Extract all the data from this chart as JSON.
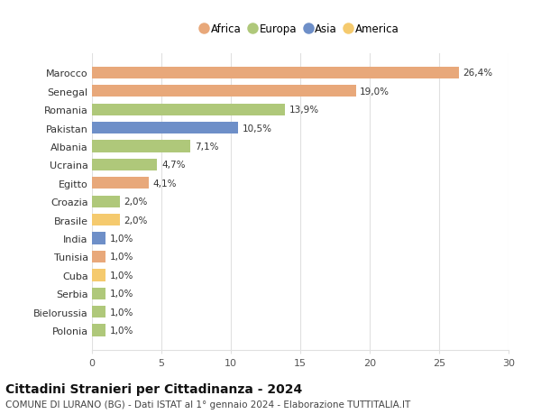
{
  "countries": [
    "Polonia",
    "Bielorussia",
    "Serbia",
    "Cuba",
    "Tunisia",
    "India",
    "Brasile",
    "Croazia",
    "Egitto",
    "Ucraina",
    "Albania",
    "Pakistan",
    "Romania",
    "Senegal",
    "Marocco"
  ],
  "values": [
    1.0,
    1.0,
    1.0,
    1.0,
    1.0,
    1.0,
    2.0,
    2.0,
    4.1,
    4.7,
    7.1,
    10.5,
    13.9,
    19.0,
    26.4
  ],
  "labels": [
    "1,0%",
    "1,0%",
    "1,0%",
    "1,0%",
    "1,0%",
    "1,0%",
    "2,0%",
    "2,0%",
    "4,1%",
    "4,7%",
    "7,1%",
    "10,5%",
    "13,9%",
    "19,0%",
    "26,4%"
  ],
  "colors": [
    "#afc87a",
    "#afc87a",
    "#afc87a",
    "#f5ca6e",
    "#e8a87a",
    "#6e8fc8",
    "#f5ca6e",
    "#afc87a",
    "#e8a87a",
    "#afc87a",
    "#afc87a",
    "#6e8fc8",
    "#afc87a",
    "#e8a87a",
    "#e8a87a"
  ],
  "legend_labels": [
    "Africa",
    "Europa",
    "Asia",
    "America"
  ],
  "legend_colors": [
    "#e8a87a",
    "#afc87a",
    "#6e8fc8",
    "#f5ca6e"
  ],
  "title": "Cittadini Stranieri per Cittadinanza - 2024",
  "subtitle": "COMUNE DI LURANO (BG) - Dati ISTAT al 1° gennaio 2024 - Elaborazione TUTTITALIA.IT",
  "xlim": [
    0,
    30
  ],
  "xticks": [
    0,
    5,
    10,
    15,
    20,
    25,
    30
  ],
  "background_color": "#ffffff",
  "grid_color": "#e0e0e0",
  "bar_height": 0.65,
  "title_fontsize": 10,
  "subtitle_fontsize": 7.5,
  "label_fontsize": 7.5,
  "tick_fontsize": 8,
  "legend_fontsize": 8.5
}
